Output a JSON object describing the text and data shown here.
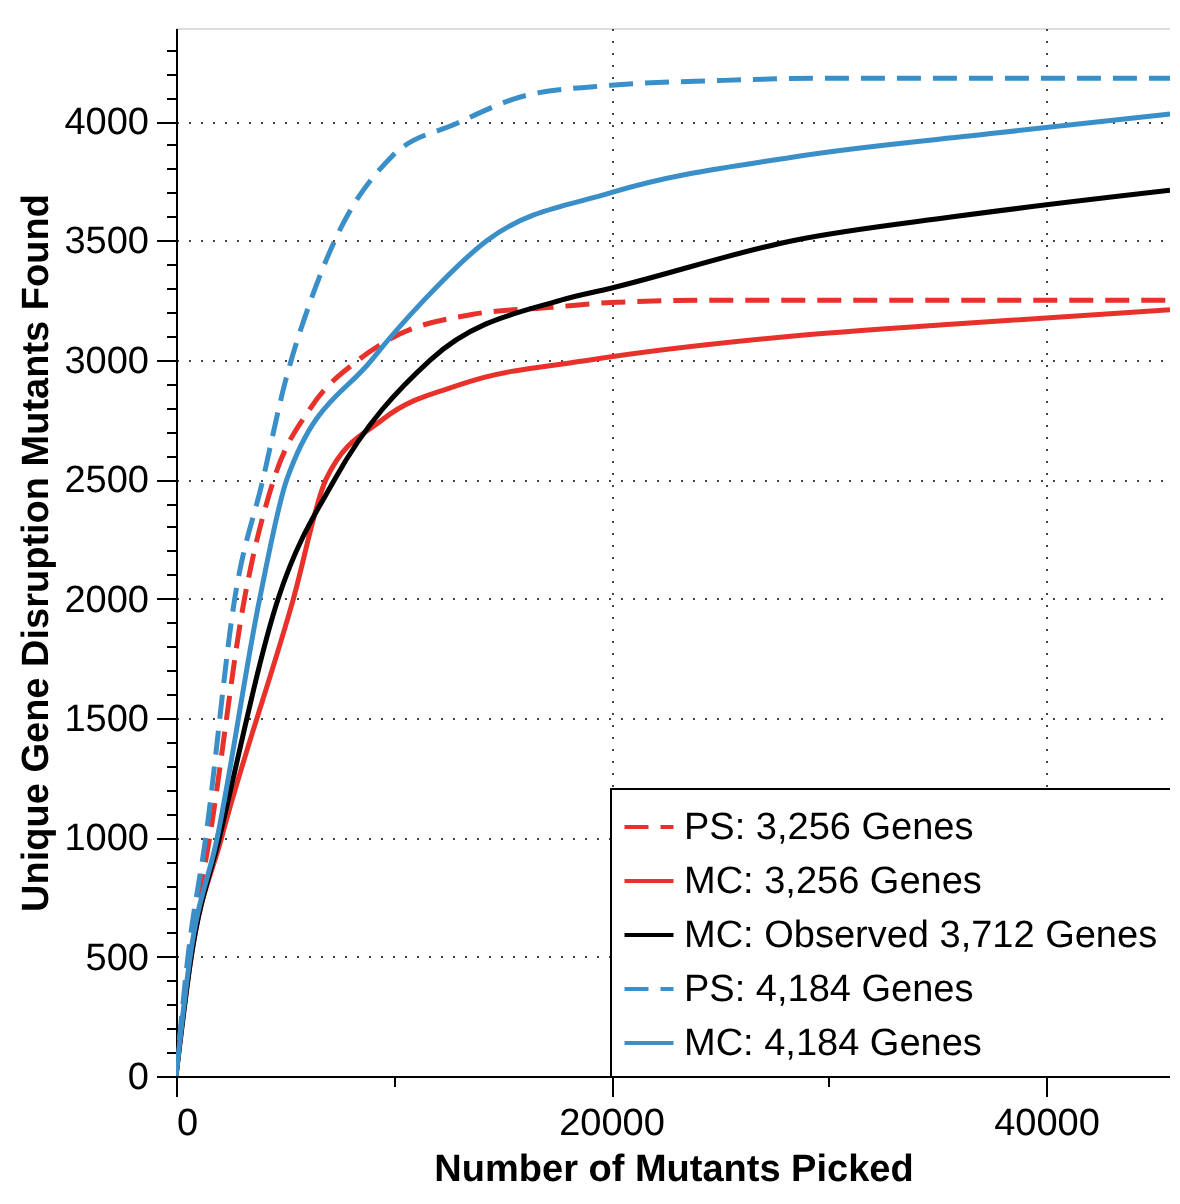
{
  "chart_data": {
    "type": "line",
    "xlabel": "Number of Mutants Picked",
    "ylabel": "Unique Gene Disruption Mutants Found",
    "xlim": [
      0,
      45700
    ],
    "ylim": [
      0,
      4390
    ],
    "xticks": [
      0,
      {
        "value": 10000,
        "label": null
      },
      20000,
      {
        "value": 30000,
        "label": null
      },
      40000
    ],
    "yticks": [
      0,
      {
        "value": 100,
        "label": null
      },
      {
        "value": 200,
        "label": null
      },
      {
        "value": 300,
        "label": null
      },
      {
        "value": 400,
        "label": null
      },
      500,
      {
        "value": 600,
        "label": null
      },
      {
        "value": 700,
        "label": null
      },
      {
        "value": 800,
        "label": null
      },
      {
        "value": 900,
        "label": null
      },
      1000,
      {
        "value": 1100,
        "label": null
      },
      {
        "value": 1200,
        "label": null
      },
      {
        "value": 1300,
        "label": null
      },
      {
        "value": 1400,
        "label": null
      },
      1500,
      {
        "value": 1600,
        "label": null
      },
      {
        "value": 1700,
        "label": null
      },
      {
        "value": 1800,
        "label": null
      },
      {
        "value": 1900,
        "label": null
      },
      2000,
      {
        "value": 2100,
        "label": null
      },
      {
        "value": 2200,
        "label": null
      },
      {
        "value": 2300,
        "label": null
      },
      {
        "value": 2400,
        "label": null
      },
      2500,
      {
        "value": 2600,
        "label": null
      },
      {
        "value": 2700,
        "label": null
      },
      {
        "value": 2800,
        "label": null
      },
      {
        "value": 2900,
        "label": null
      },
      3000,
      {
        "value": 3100,
        "label": null
      },
      {
        "value": 3200,
        "label": null
      },
      {
        "value": 3300,
        "label": null
      },
      {
        "value": 3400,
        "label": null
      },
      3500,
      {
        "value": 3600,
        "label": null
      },
      {
        "value": 3700,
        "label": null
      },
      {
        "value": 3800,
        "label": null
      },
      {
        "value": 3900,
        "label": null
      },
      4000,
      {
        "value": 4100,
        "label": null
      },
      {
        "value": 4200,
        "label": null
      },
      {
        "value": 4300,
        "label": null
      }
    ],
    "grid": true,
    "legend": "bottom right",
    "series": [
      {
        "name": "PS: 3,256 Genes",
        "color": "#e8312a",
        "line_style": "dashed",
        "x": [
          0,
          600,
          1550,
          3150,
          4500,
          6200,
          8400,
          9900,
          13600,
          17300,
          20000,
          25000,
          45700
        ],
        "values": [
          0,
          500,
          1000,
          2000,
          2500,
          2800,
          3000,
          3090,
          3190,
          3220,
          3240,
          3250,
          3250
        ]
      },
      {
        "name": "MC: 3,256 Genes",
        "color": "#e8312a",
        "line_style": "solid",
        "x": [
          0,
          700,
          2100,
          5400,
          6900,
          9500,
          13200,
          19100,
          28400,
          35800,
          45700
        ],
        "values": [
          0,
          500,
          1000,
          2000,
          2500,
          2750,
          2900,
          3000,
          3100,
          3150,
          3210
        ]
      },
      {
        "name": "MC: Observed 3,712 Genes",
        "color": "#000000",
        "line_style": "solid",
        "x": [
          0,
          700,
          2000,
          4700,
          7300,
          11700,
          17700,
          20000,
          28400,
          35800,
          45700
        ],
        "values": [
          0,
          500,
          1000,
          2000,
          2500,
          3000,
          3250,
          3300,
          3500,
          3600,
          3710
        ]
      },
      {
        "name": "PS: 4,184 Genes",
        "color": "#3a8fc8",
        "line_style": "dashed",
        "x": [
          0,
          550,
          1370,
          2700,
          4000,
          5000,
          6200,
          7300,
          9900,
          12900,
          16200,
          20000,
          25000,
          30000,
          45700
        ],
        "values": [
          0,
          500,
          1000,
          2000,
          2500,
          2900,
          3250,
          3500,
          3850,
          3990,
          4110,
          4150,
          4170,
          4180,
          4180
        ]
      },
      {
        "name": "MC: 4,184 Genes",
        "color": "#3a8fc8",
        "line_style": "solid",
        "x": [
          0,
          650,
          1900,
          3850,
          5100,
          9000,
          11400,
          14300,
          20000,
          28400,
          37700,
          45700
        ],
        "values": [
          0,
          500,
          1000,
          2000,
          2500,
          3000,
          3250,
          3500,
          3700,
          3850,
          3950,
          4030
        ]
      }
    ]
  }
}
